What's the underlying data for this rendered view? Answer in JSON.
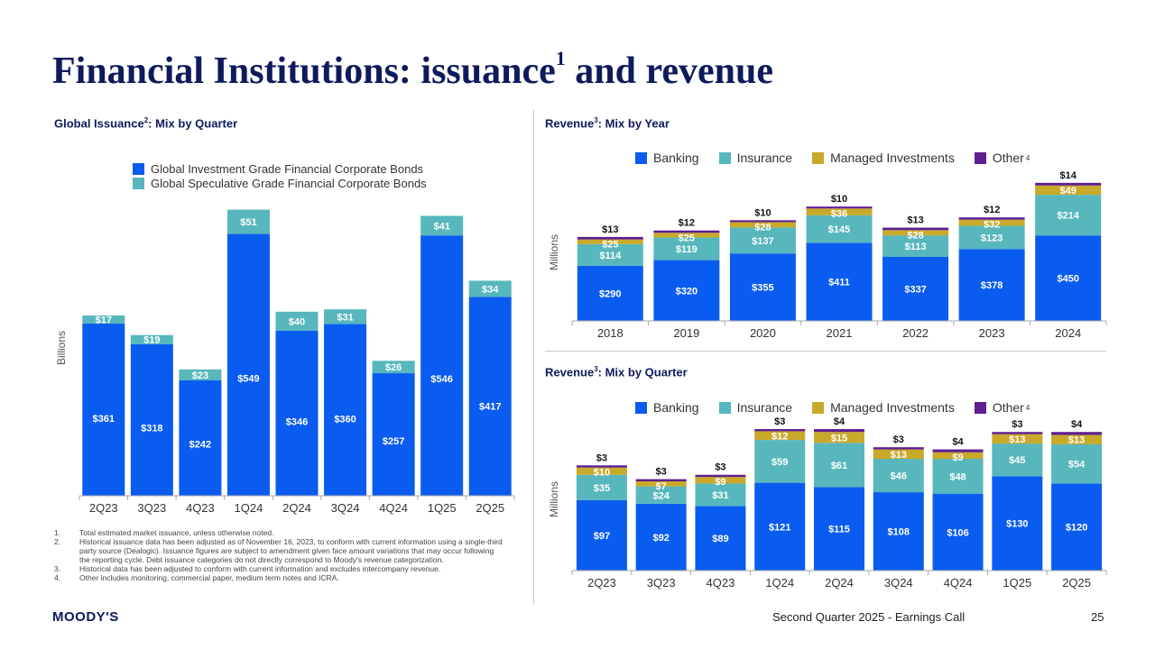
{
  "title": {
    "main": "Financial Institutions: issuance",
    "sup": "1",
    "rest": " and revenue"
  },
  "colors": {
    "navy": "#0e1a5c",
    "banking": "#0a5cf0",
    "insurance": "#57b7bc",
    "managed": "#c9a92a",
    "other": "#5e1e90",
    "ig": "#0a5cf0",
    "spec": "#57b7bc"
  },
  "issuance": {
    "heading": {
      "pre": "Global Issuance",
      "sup": "2",
      "post": ": Mix by Quarter"
    },
    "ylabel": "Billions",
    "legend": [
      {
        "label": "Global Investment Grade Financial Corporate Bonds"
      },
      {
        "label": "Global Speculative Grade Financial Corporate Bonds"
      }
    ]
  },
  "rev_year": {
    "heading": {
      "pre": "Revenue",
      "sup": "3",
      "post": ": Mix by Year"
    },
    "ylabel": "Millions",
    "legend": [
      {
        "label": "Banking"
      },
      {
        "label": "Insurance"
      },
      {
        "label": "Managed Investments"
      },
      {
        "label": "Other",
        "sup": "4"
      }
    ]
  },
  "rev_quarter": {
    "heading": {
      "pre": "Revenue",
      "sup": "3",
      "post": ": Mix by Quarter"
    },
    "ylabel": "Millions",
    "legend": [
      {
        "label": "Banking"
      },
      {
        "label": "Insurance"
      },
      {
        "label": "Managed Investments"
      },
      {
        "label": "Other",
        "sup": "4"
      }
    ]
  },
  "chart_data": [
    {
      "id": "issuance",
      "type": "bar",
      "stacked": true,
      "title": "Global Issuance: Mix by Quarter",
      "ylabel": "Billions",
      "ylim": [
        0,
        620
      ],
      "categories": [
        "2Q23",
        "3Q23",
        "4Q23",
        "1Q24",
        "2Q24",
        "3Q24",
        "4Q24",
        "1Q25",
        "2Q25"
      ],
      "series": [
        {
          "name": "Global Investment Grade Financial Corporate Bonds",
          "values": [
            361,
            318,
            242,
            549,
            346,
            360,
            257,
            546,
            417
          ],
          "labels": [
            "$361",
            "$318",
            "$242",
            "$549",
            "$346",
            "$360",
            "$257",
            "$546",
            "$417"
          ]
        },
        {
          "name": "Global Speculative Grade Financial Corporate Bonds",
          "values": [
            17,
            19,
            23,
            51,
            40,
            31,
            26,
            41,
            34
          ],
          "labels": [
            "$17",
            "$19",
            "$23",
            "$51",
            "$40",
            "$31",
            "$26",
            "$41",
            "$34"
          ]
        }
      ]
    },
    {
      "id": "rev_year",
      "type": "bar",
      "stacked": true,
      "title": "Revenue: Mix by Year",
      "ylabel": "Millions",
      "ylim": [
        0,
        750
      ],
      "categories": [
        "2018",
        "2019",
        "2020",
        "2021",
        "2022",
        "2023",
        "2024"
      ],
      "series": [
        {
          "name": "Banking",
          "values": [
            290,
            320,
            355,
            411,
            337,
            378,
            450
          ],
          "labels": [
            "$290",
            "$320",
            "$355",
            "$411",
            "$337",
            "$378",
            "$450"
          ]
        },
        {
          "name": "Insurance",
          "values": [
            114,
            119,
            137,
            145,
            113,
            123,
            214
          ],
          "labels": [
            "$114",
            "$119",
            "$137",
            "$145",
            "$113",
            "$123",
            "$214"
          ]
        },
        {
          "name": "Managed Investments",
          "values": [
            25,
            25,
            28,
            36,
            28,
            32,
            49
          ],
          "labels": [
            "$25",
            "$25",
            "$28",
            "$36",
            "$28",
            "$32",
            "$49"
          ]
        },
        {
          "name": "Other",
          "values": [
            13,
            12,
            10,
            10,
            13,
            12,
            14
          ],
          "labels": [
            "$13",
            "$12",
            "$10",
            "$10",
            "$13",
            "$12",
            "$14"
          ]
        }
      ]
    },
    {
      "id": "rev_quarter",
      "type": "bar",
      "stacked": true,
      "title": "Revenue: Mix by Quarter",
      "ylabel": "Millions",
      "ylim": [
        0,
        200
      ],
      "categories": [
        "2Q23",
        "3Q23",
        "4Q23",
        "1Q24",
        "2Q24",
        "3Q24",
        "4Q24",
        "1Q25",
        "2Q25"
      ],
      "series": [
        {
          "name": "Banking",
          "values": [
            97,
            92,
            89,
            121,
            115,
            108,
            106,
            130,
            120
          ],
          "labels": [
            "$97",
            "$92",
            "$89",
            "$121",
            "$115",
            "$108",
            "$106",
            "$130",
            "$120"
          ]
        },
        {
          "name": "Insurance",
          "values": [
            35,
            24,
            31,
            59,
            61,
            46,
            48,
            45,
            54
          ],
          "labels": [
            "$35",
            "$24",
            "$31",
            "$59",
            "$61",
            "$46",
            "$48",
            "$45",
            "$54"
          ]
        },
        {
          "name": "Managed Investments",
          "values": [
            10,
            7,
            9,
            12,
            15,
            13,
            9,
            13,
            13
          ],
          "labels": [
            "$10",
            "$7",
            "$9",
            "$12",
            "$15",
            "$13",
            "$9",
            "$13",
            "$13"
          ]
        },
        {
          "name": "Other",
          "values": [
            3,
            3,
            3,
            3,
            4,
            3,
            4,
            3,
            4
          ],
          "labels": [
            "$3",
            "$3",
            "$3",
            "$3",
            "$4",
            "$3",
            "$4",
            "$3",
            "$4"
          ]
        }
      ]
    }
  ],
  "footnotes": [
    {
      "num": "1.",
      "text": "Total estimated market issuance, unless otherwise noted."
    },
    {
      "num": "2.",
      "text": "Historical issuance data has been adjusted as of November 16, 2023, to conform with current information using a single-third party source (Dealogic). Issuance figures are subject to amendment given face amount variations that may occur following the reporting cycle. Debt issuance categories do not directly correspond to Moody's revenue categorization."
    },
    {
      "num": "3.",
      "text": "Historical data has been adjusted to conform with current information and excludes intercompany revenue."
    },
    {
      "num": "4.",
      "text": "Other includes monitoring, commercial paper, medium term notes and ICRA."
    }
  ],
  "footer": {
    "logo": "MOODY'S",
    "event": "Second Quarter 2025 - Earnings Call",
    "page": "25"
  }
}
